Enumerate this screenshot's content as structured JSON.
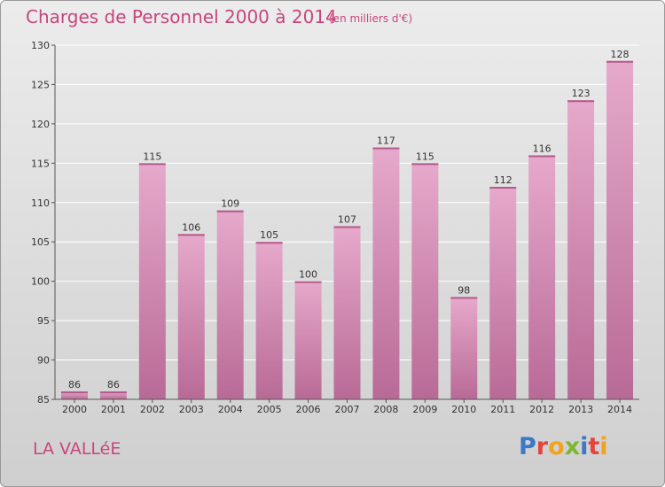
{
  "header": {
    "title": "Charges de Personnel 2000 à 2014",
    "unit_note": "(en milliers d'€)"
  },
  "commune_name": "LA VALLéE",
  "logo": {
    "text": "Proxiti",
    "letters": [
      "P",
      "r",
      "o",
      "x",
      "i",
      "t",
      "i"
    ]
  },
  "colors": {
    "bar": "#dc8fbb",
    "bar_dark": "#c86ea1",
    "accent_text": "#c8457e"
  },
  "chart_data": {
    "type": "bar",
    "title": "Charges de Personnel 2000 à 2014",
    "subtitle": "(en milliers d'€)",
    "xlabel": "",
    "ylabel": "",
    "categories": [
      "2000",
      "2001",
      "2002",
      "2003",
      "2004",
      "2005",
      "2006",
      "2007",
      "2008",
      "2009",
      "2010",
      "2011",
      "2012",
      "2013",
      "2014"
    ],
    "values": [
      86,
      86,
      115,
      106,
      109,
      105,
      100,
      107,
      117,
      115,
      98,
      112,
      116,
      123,
      128
    ],
    "ylim": [
      85,
      130
    ],
    "yticks": [
      85,
      90,
      95,
      100,
      105,
      110,
      115,
      120,
      125,
      130
    ],
    "grid": true
  }
}
